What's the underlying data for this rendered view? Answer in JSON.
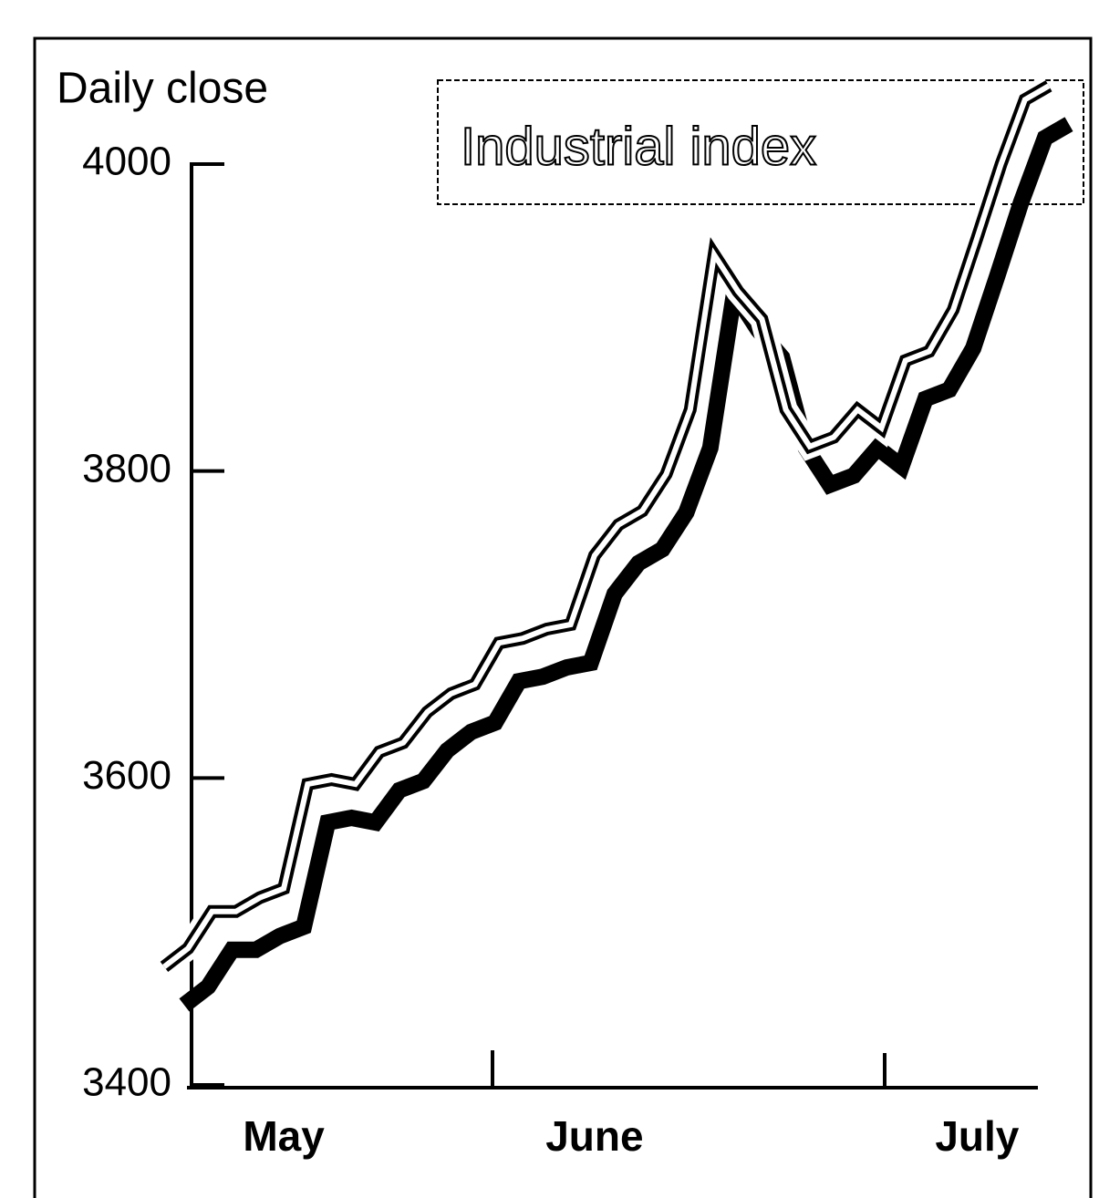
{
  "chart_data": {
    "type": "line",
    "title": "Industrial index",
    "y_label": "Daily close",
    "categories": [
      null,
      null,
      null,
      null,
      null,
      "May",
      null,
      null,
      null,
      null,
      null,
      null,
      null,
      null,
      null,
      null,
      null,
      null,
      "June",
      null,
      null,
      null,
      null,
      null,
      null,
      null,
      null,
      null,
      null,
      null,
      null,
      null,
      null,
      null,
      "July",
      null,
      null,
      null
    ],
    "series": [
      {
        "name": "Industrial index",
        "color": "#000000",
        "values": [
          3477,
          3489,
          3513,
          3513,
          3522,
          3528,
          3596,
          3599,
          3596,
          3617,
          3623,
          3643,
          3655,
          3661,
          3688,
          3691,
          3697,
          3700,
          3745,
          3765,
          3774,
          3798,
          3840,
          3941,
          3917,
          3899,
          3840,
          3816,
          3822,
          3840,
          3828,
          3872,
          3878,
          3905,
          3952,
          4000,
          4042,
          4051
        ]
      }
    ],
    "ylim": [
      3400,
      4000
    ],
    "yticks": [
      3400,
      3600,
      3800,
      4000
    ]
  }
}
